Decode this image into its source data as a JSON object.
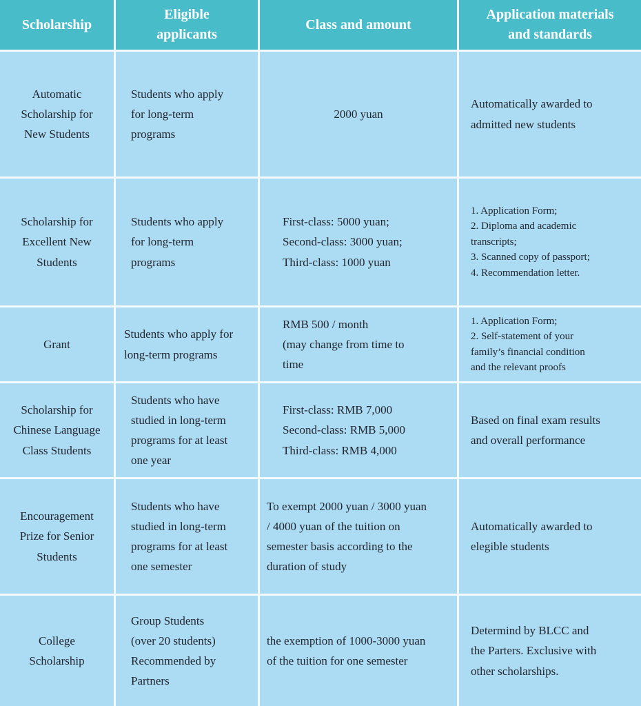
{
  "title": "Scholarship information table",
  "colors": {
    "header_bg": "#49BCCA",
    "cell_bg": "#ACDCF4",
    "divider": "#FFFFFF",
    "header_text": "#FFFFFF",
    "body_text": "#23262E"
  },
  "table": {
    "headers": {
      "scholarship": "Scholarship",
      "applicants": "Eligible\napplicants",
      "amount": "Class and amount",
      "materials": "Application materials\nand standards"
    },
    "rows": [
      {
        "scholarship": "Automatic\nScholarship for\nNew Students",
        "applicants": "Students who apply\nfor long-term\nprograms",
        "amount": "2000 yuan",
        "materials": "Automatically awarded to\nadmitted new students"
      },
      {
        "scholarship": "Scholarship for\nExcellent New\nStudents",
        "applicants": "Students who apply\nfor long-term\nprograms",
        "amount": "First-class: 5000 yuan;\nSecond-class: 3000 yuan;\nThird-class: 1000 yuan",
        "materials": "1. Application Form;\n2. Diploma and academic\ntranscripts;\n3. Scanned copy of passport;\n4. Recommendation letter."
      },
      {
        "scholarship": "Grant",
        "applicants": "Students who apply for\nlong-term programs",
        "amount": "RMB 500 / month\n(may change from time to\ntime",
        "materials": "1. Application Form;\n2. Self-statement of your\nfamily’s financial condition\nand the relevant proofs"
      },
      {
        "scholarship": "Scholarship for\nChinese Language\nClass Students",
        "applicants": "Students who have\nstudied in long-term\nprograms for at least\none year",
        "amount": "First-class: RMB 7,000\nSecond-class: RMB 5,000\nThird-class: RMB 4,000",
        "materials": "Based on final exam results\nand overall performance"
      },
      {
        "scholarship": "Encouragement\nPrize for Senior\nStudents",
        "applicants": "Students who have\nstudied in long-term\nprograms for at least\none semester",
        "amount": "To exempt 2000 yuan / 3000 yuan\n/ 4000 yuan of the tuition on\nsemester basis according to the\nduration of study",
        "materials": "Automatically awarded to\nelegible students"
      },
      {
        "scholarship": "College\nScholarship",
        "applicants": "Group Students\n(over 20 students)\nRecommended by\nPartners",
        "amount": "the exemption of 1000-3000 yuan\nof the tuition for one semester",
        "materials": "Determind by BLCC and\nthe Parters. Exclusive with\nother scholarships."
      }
    ]
  }
}
